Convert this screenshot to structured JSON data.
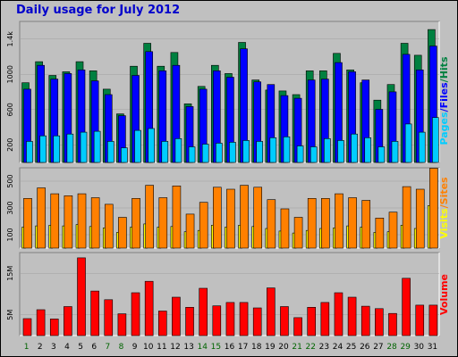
{
  "title": "Daily usage for July 2012",
  "colors": {
    "pages": "#00CCFF",
    "files": "#0000FF",
    "hits": "#008040",
    "visits": "#FFFF00",
    "sites": "#FF8000",
    "volume": "#FF0000",
    "weekday": "#000000",
    "weekend": "#006400"
  },
  "chart_data": [
    {
      "type": "bar",
      "panel": "usage",
      "categories": [
        "1",
        "2",
        "3",
        "4",
        "5",
        "6",
        "7",
        "8",
        "9",
        "10",
        "11",
        "12",
        "13",
        "14",
        "15",
        "16",
        "17",
        "18",
        "19",
        "20",
        "21",
        "22",
        "23",
        "24",
        "25",
        "26",
        "27",
        "28",
        "29",
        "30",
        "31"
      ],
      "weekend_days": [
        1,
        7,
        8,
        14,
        15,
        21,
        22,
        28,
        29
      ],
      "y_ticks": [
        "1.4k",
        "1000",
        "600",
        "200"
      ],
      "ylim": [
        0,
        1500
      ],
      "side_label_parts": [
        "Pages",
        "/",
        "Files",
        "/",
        "Hits"
      ],
      "series": [
        {
          "name": "Hits",
          "values": [
            870,
            1100,
            950,
            990,
            1100,
            1000,
            800,
            530,
            1050,
            1300,
            1050,
            1200,
            640,
            830,
            1060,
            970,
            1310,
            900,
            790,
            780,
            740,
            1000,
            1000,
            1190,
            1010,
            870,
            680,
            850,
            1300,
            1170,
            1450
          ]
        },
        {
          "name": "Files",
          "values": [
            800,
            1060,
            910,
            970,
            1010,
            890,
            740,
            510,
            950,
            1210,
            1000,
            1060,
            610,
            800,
            1000,
            930,
            1240,
            880,
            850,
            730,
            700,
            900,
            910,
            1090,
            990,
            900,
            580,
            770,
            1180,
            1010,
            1270
          ]
        },
        {
          "name": "Pages",
          "values": [
            230,
            290,
            290,
            310,
            330,
            340,
            230,
            160,
            350,
            370,
            230,
            260,
            170,
            200,
            210,
            220,
            240,
            230,
            270,
            280,
            180,
            170,
            260,
            240,
            310,
            270,
            170,
            230,
            420,
            330,
            490
          ]
        }
      ]
    },
    {
      "type": "bar",
      "panel": "visits-sites",
      "y_ticks": [
        "500",
        "300",
        "100"
      ],
      "ylim": [
        0,
        600
      ],
      "side_label_parts": [
        "Visits",
        "/",
        "Sites"
      ],
      "series": [
        {
          "name": "Visits",
          "values": [
            160,
            170,
            175,
            170,
            180,
            165,
            155,
            120,
            160,
            185,
            160,
            165,
            125,
            135,
            175,
            160,
            175,
            165,
            150,
            130,
            115,
            135,
            150,
            155,
            170,
            160,
            120,
            125,
            175,
            150,
            325
          ]
        },
        {
          "name": "Sites",
          "values": [
            380,
            460,
            415,
            400,
            415,
            385,
            335,
            235,
            380,
            480,
            385,
            475,
            260,
            350,
            465,
            450,
            480,
            465,
            370,
            300,
            235,
            380,
            380,
            415,
            385,
            365,
            230,
            275,
            470,
            450,
            610
          ]
        }
      ]
    },
    {
      "type": "bar",
      "panel": "volume",
      "y_ticks": [
        "15M",
        "5M"
      ],
      "ylim": [
        0,
        23
      ],
      "side_label": "Volume",
      "series": [
        {
          "name": "Volume",
          "values": [
            4.9,
            7.5,
            4.8,
            8.4,
            22.5,
            12.9,
            10.4,
            6.3,
            12.4,
            15.7,
            7.1,
            11.1,
            8.2,
            13.7,
            8.6,
            9.6,
            9.6,
            8.0,
            13.8,
            8.4,
            5.2,
            8.2,
            9.6,
            12.4,
            11.1,
            8.5,
            7.8,
            6.4,
            16.6,
            8.8,
            8.8
          ]
        }
      ]
    }
  ]
}
